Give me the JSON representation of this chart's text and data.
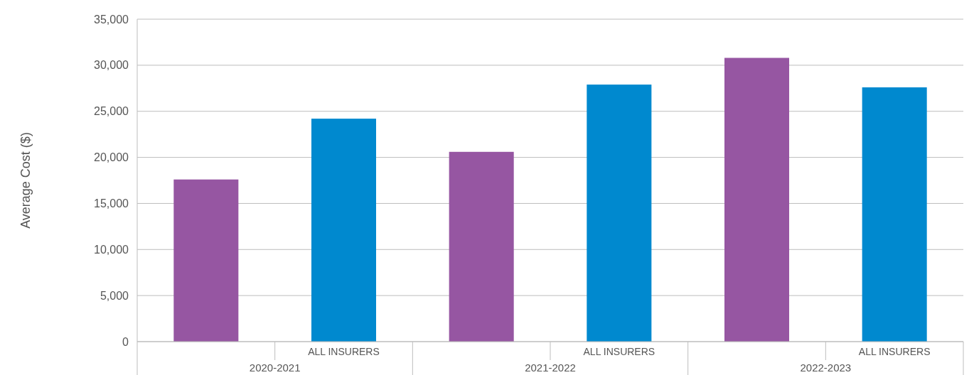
{
  "chart_data": {
    "type": "bar",
    "ylabel": "Average Cost ($)",
    "categories": [
      "2020-2021",
      "2021-2022",
      "2022-2023"
    ],
    "series": [
      {
        "color": "#9656a2",
        "values": [
          17600,
          20600,
          30800
        ]
      },
      {
        "name": "ALL INSURERS",
        "color": "#0089cf",
        "values": [
          24200,
          27900,
          27600
        ]
      }
    ],
    "ylim": [
      0,
      35000
    ],
    "yticks": [
      {
        "value": 0,
        "label": "0"
      },
      {
        "value": 5000,
        "label": "5,000"
      },
      {
        "value": 10000,
        "label": "10,000"
      },
      {
        "value": 15000,
        "label": "15,000"
      },
      {
        "value": 20000,
        "label": "20,000"
      },
      {
        "value": 25000,
        "label": "25,000"
      },
      {
        "value": 30000,
        "label": "30,000"
      },
      {
        "value": 35000,
        "label": "35,000"
      }
    ],
    "grid": "y"
  }
}
